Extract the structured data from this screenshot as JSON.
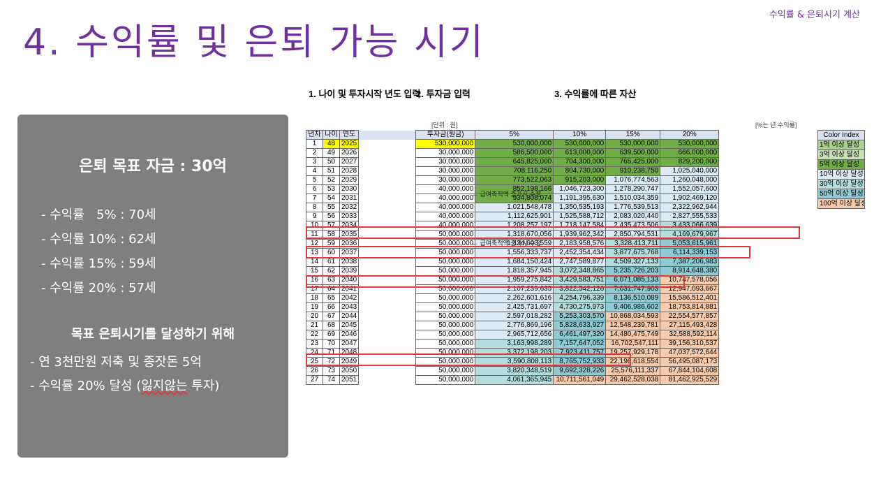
{
  "slide": {
    "title": "4. 수익률 및 은퇴 가능 시기",
    "top_right": "수익률 & 은퇴시기 계산"
  },
  "panel": {
    "heading": "은퇴 목표 자금 : 30억",
    "rates": [
      "- 수익률   5% : 70세",
      "- 수익률 10% : 62세",
      "- 수익률 15% : 59세",
      "- 수익률 20% : 57세"
    ],
    "goal_heading": "목표 은퇴시기를 달성하기 위해",
    "steps": [
      "- 연 3천만원 저축 및 종잣돈 5억",
      "- 수익률 20% 달성 (잃지않는 투자)"
    ]
  },
  "sheet": {
    "section1": "1. 나이 및 투자시작 년도 입력",
    "section2": "2. 투자금 입력",
    "section3": "3. 수익률에 따른 자산",
    "unit_left": "[단위 : 원]",
    "unit_right": "[%는 년 수익률]",
    "headers": [
      "년차",
      "나이",
      "연도",
      "투자금(원금)",
      "5%",
      "10%",
      "15%",
      "20%"
    ],
    "note_row_6": "← 급여축적액 증가시 수정",
    "note_row_11": "← 급여축적액 증가시 수정",
    "color_index": {
      "title": "Color Index",
      "items": [
        "1억 이상 달성",
        "3억 이상 달성",
        "5억 이상 달성",
        "10억 이상 달성",
        "30억 이상 달성",
        "50억 이상 달성",
        "100억 이상 달성"
      ],
      "colors": [
        "#a9d08e",
        "#c6e0b4",
        "#70ad47",
        "#ddebf7",
        "#b4dede",
        "#8ecbd3",
        "#f8cbad"
      ]
    },
    "rows": [
      [
        "1",
        "48",
        "2025",
        "530,000,000",
        "530,000,000",
        "530,000,000",
        "530,000,000",
        "530,000,000"
      ],
      [
        "2",
        "49",
        "2026",
        "30,000,000",
        "586,500,000",
        "613,000,000",
        "639,500,000",
        "666,000,000"
      ],
      [
        "3",
        "50",
        "2027",
        "30,000,000",
        "645,825,000",
        "704,300,000",
        "765,425,000",
        "829,200,000"
      ],
      [
        "4",
        "51",
        "2028",
        "30,000,000",
        "708,116,250",
        "804,730,000",
        "910,238,750",
        "1,025,040,000"
      ],
      [
        "5",
        "52",
        "2029",
        "30,000,000",
        "773,522,063",
        "915,203,000",
        "1,076,774,563",
        "1,260,048,000"
      ],
      [
        "6",
        "53",
        "2030",
        "40,000,000",
        "852,198,166",
        "1,046,723,300",
        "1,278,290,747",
        "1,552,057,600"
      ],
      [
        "7",
        "54",
        "2031",
        "40,000,000",
        "934,808,074",
        "1,191,395,630",
        "1,510,034,359",
        "1,902,469,120"
      ],
      [
        "8",
        "55",
        "2032",
        "40,000,000",
        "1,021,548,478",
        "1,350,535,193",
        "1,776,539,513",
        "2,322,962,944"
      ],
      [
        "9",
        "56",
        "2033",
        "40,000,000",
        "1,112,625,901",
        "1,525,588,712",
        "2,083,020,440",
        "2,827,555,533"
      ],
      [
        "10",
        "57",
        "2034",
        "40,000,000",
        "1,208,257,197",
        "1,718,147,584",
        "2,435,473,506",
        "3,433,066,639"
      ],
      [
        "11",
        "58",
        "2035",
        "50,000,000",
        "1,318,670,056",
        "1,939,962,342",
        "2,850,794,531",
        "4,169,679,967"
      ],
      [
        "12",
        "59",
        "2036",
        "50,000,000",
        "1,434,603,559",
        "2,183,958,576",
        "3,328,413,711",
        "5,053,615,961"
      ],
      [
        "13",
        "60",
        "2037",
        "50,000,000",
        "1,556,333,737",
        "2,452,354,434",
        "3,877,675,768",
        "6,114,339,153"
      ],
      [
        "14",
        "61",
        "2038",
        "50,000,000",
        "1,684,150,424",
        "2,747,589,877",
        "4,509,327,133",
        "7,387,206,983"
      ],
      [
        "15",
        "62",
        "2039",
        "50,000,000",
        "1,818,357,945",
        "3,072,348,865",
        "5,235,726,203",
        "8,914,648,380"
      ],
      [
        "16",
        "63",
        "2040",
        "50,000,000",
        "1,959,275,842",
        "3,429,583,751",
        "6,071,085,133",
        "10,747,578,056"
      ],
      [
        "17",
        "64",
        "2041",
        "50,000,000",
        "2,107,239,635",
        "3,822,542,126",
        "7,031,747,903",
        "12,947,093,667"
      ],
      [
        "18",
        "65",
        "2042",
        "50,000,000",
        "2,262,601,616",
        "4,254,796,339",
        "8,136,510,089",
        "15,586,512,401"
      ],
      [
        "19",
        "66",
        "2043",
        "50,000,000",
        "2,425,731,697",
        "4,730,275,973",
        "9,406,986,602",
        "18,753,814,881"
      ],
      [
        "20",
        "67",
        "2044",
        "50,000,000",
        "2,597,018,282",
        "5,253,303,570",
        "10,868,034,593",
        "22,554,577,857"
      ],
      [
        "21",
        "68",
        "2045",
        "50,000,000",
        "2,776,869,196",
        "5,828,633,927",
        "12,548,239,781",
        "27,115,493,428"
      ],
      [
        "22",
        "69",
        "2046",
        "50,000,000",
        "2,965,712,656",
        "6,461,497,320",
        "14,480,475,749",
        "32,588,592,114"
      ],
      [
        "23",
        "70",
        "2047",
        "50,000,000",
        "3,163,998,289",
        "7,157,647,052",
        "16,702,547,111",
        "39,156,310,537"
      ],
      [
        "24",
        "71",
        "2048",
        "50,000,000",
        "3,372,198,203",
        "7,923,411,757",
        "19,257,929,178",
        "47,037,572,644"
      ],
      [
        "25",
        "72",
        "2049",
        "50,000,000",
        "3,590,808,113",
        "8,765,752,933",
        "22,196,618,554",
        "56,495,087,173"
      ],
      [
        "26",
        "73",
        "2050",
        "50,000,000",
        "3,820,348,519",
        "9,692,328,226",
        "25,576,111,337",
        "67,844,104,608"
      ],
      [
        "27",
        "74",
        "2051",
        "50,000,000",
        "4,061,365,945",
        "10,711,561,049",
        "29,462,528,038",
        "81,462,925,529"
      ]
    ]
  }
}
